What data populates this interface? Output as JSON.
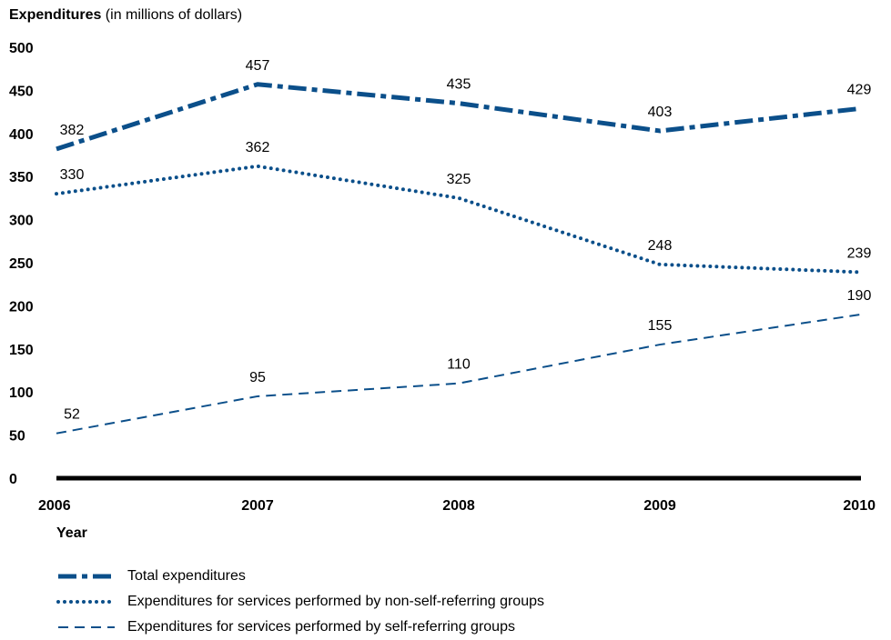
{
  "chart_data": {
    "type": "line",
    "ylabel_bold": "Expenditures",
    "ylabel_rest": " (in millions of dollars)",
    "xlabel": "Year",
    "x": [
      "2006",
      "2007",
      "2008",
      "2009",
      "2010"
    ],
    "yticks": [
      "0",
      "50",
      "100",
      "150",
      "200",
      "250",
      "300",
      "350",
      "400",
      "450",
      "500"
    ],
    "ylim": [
      0,
      500
    ],
    "grid": false,
    "legend_position": "bottom",
    "series": [
      {
        "name": "Total expenditures",
        "style": "dash-dot",
        "values": [
          382,
          457,
          435,
          403,
          429
        ]
      },
      {
        "name": "Expenditures for services performed by non-self-referring groups",
        "style": "dotted",
        "values": [
          330,
          362,
          325,
          248,
          239
        ]
      },
      {
        "name": "Expenditures for services performed by self-referring groups",
        "style": "dashed",
        "values": [
          52,
          95,
          110,
          155,
          190
        ]
      }
    ],
    "colors": {
      "line": "#0b4f8a",
      "axis": "#000000"
    }
  }
}
